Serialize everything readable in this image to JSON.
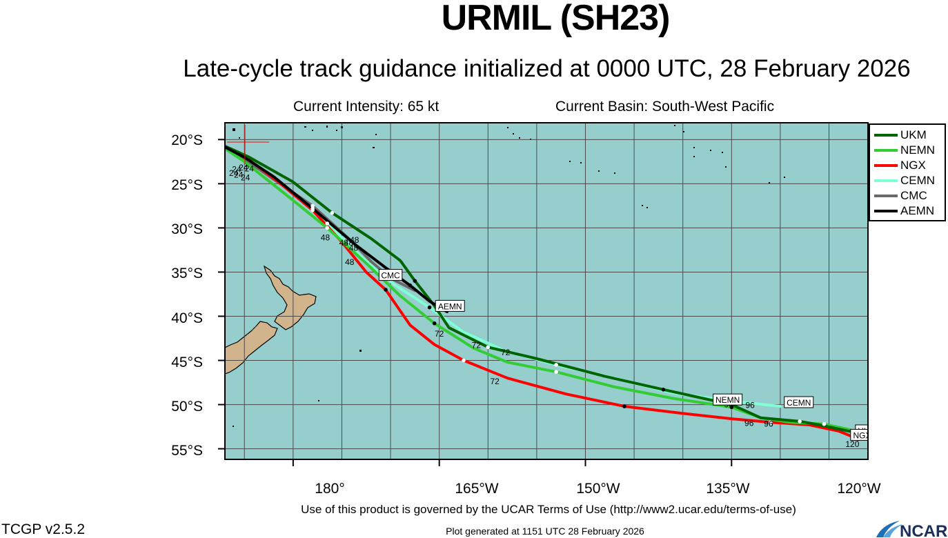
{
  "title": "URMIL (SH23)",
  "subtitle": "Late-cycle track guidance initialized at 0000 UTC, 28 February 2026",
  "current_intensity": "Current Intensity: 65 kt",
  "current_basin": "Current Basin: South-West Pacific",
  "lat_labels": [
    "20°S",
    "25°S",
    "30°S",
    "35°S",
    "40°S",
    "45°S",
    "50°S",
    "55°S"
  ],
  "lon_labels": [
    "180°",
    "165°W",
    "150°W",
    "135°W",
    "120°W"
  ],
  "terms": "Use of this product is governed by the UCAR Terms of Use (http://www2.ucar.edu/terms-of-use)",
  "version": "TCGP v2.5.2",
  "generated": "Plot generated at 1151 UTC   28 February 2026",
  "logo_text": "NCAR",
  "colors": {
    "ocean": "#96cdcd",
    "land": "#d2b48c",
    "UKM": "#006400",
    "NEMN": "#32cd32",
    "NGX": "#ff0000",
    "CEMN": "#7fffd4",
    "CMC": "#696969",
    "AEMN": "#000000"
  },
  "legend": [
    {
      "name": "UKM",
      "color": "#006400"
    },
    {
      "name": "NEMN",
      "color": "#32cd32"
    },
    {
      "name": "NGX",
      "color": "#ff0000"
    },
    {
      "name": "CEMN",
      "color": "#7fffd4"
    },
    {
      "name": "CMC",
      "color": "#696969"
    },
    {
      "name": "AEMN",
      "color": "#000000"
    }
  ],
  "chart_data": {
    "type": "map",
    "lon_range_east": [
      173.0,
      239.0
    ],
    "lat_range": [
      -56.2,
      -18.1
    ],
    "grid": true,
    "current_position": {
      "lon_east": 171.9,
      "lat": -20.2
    },
    "tracks": [
      {
        "name": "UKM",
        "points": [
          [
            171.9,
            -20.2
          ],
          [
            175.5,
            -22.0
          ],
          [
            180.0,
            -24.8
          ],
          [
            184.0,
            -28.3
          ],
          [
            188.0,
            -31.2
          ],
          [
            191.0,
            -33.7
          ],
          [
            192.5,
            -36.0
          ],
          [
            194.5,
            -38.8
          ],
          [
            196.0,
            -41.3
          ],
          [
            200.0,
            -43.5
          ],
          [
            205.0,
            -44.8
          ],
          [
            212.0,
            -46.8
          ],
          [
            218.0,
            -48.3
          ],
          [
            225.0,
            -50.0
          ],
          [
            228.0,
            -51.5
          ],
          [
            232.0,
            -51.9
          ],
          [
            234.0,
            -52.3
          ],
          [
            237.0,
            -53.0
          ],
          [
            239.0,
            -53.4
          ]
        ]
      },
      {
        "name": "NEMN",
        "points": [
          [
            171.9,
            -20.2
          ],
          [
            175.0,
            -22.5
          ],
          [
            179.0,
            -26.0
          ],
          [
            183.5,
            -30.0
          ],
          [
            187.5,
            -34.0
          ],
          [
            191.0,
            -37.7
          ],
          [
            194.5,
            -40.8
          ],
          [
            198.5,
            -43.6
          ],
          [
            202.0,
            -45.2
          ],
          [
            207.0,
            -46.3
          ],
          [
            213.0,
            -48.0
          ],
          [
            219.0,
            -49.3
          ],
          [
            225.0,
            -50.3
          ],
          [
            228.0,
            -51.5
          ],
          [
            231.0,
            -52.0
          ],
          [
            234.5,
            -52.2
          ],
          [
            237.0,
            -52.8
          ],
          [
            239.0,
            -53.4
          ]
        ]
      },
      {
        "name": "NGX",
        "points": [
          [
            171.9,
            -20.2
          ],
          [
            174.5,
            -21.5
          ],
          [
            178.5,
            -24.8
          ],
          [
            182.0,
            -28.0
          ],
          [
            185.0,
            -31.6
          ],
          [
            187.5,
            -35.0
          ],
          [
            189.5,
            -37.0
          ],
          [
            192.0,
            -41.0
          ],
          [
            194.5,
            -43.2
          ],
          [
            197.5,
            -45.0
          ],
          [
            202.0,
            -47.0
          ],
          [
            208.0,
            -48.8
          ],
          [
            214.0,
            -50.2
          ],
          [
            220.0,
            -51.0
          ],
          [
            225.0,
            -51.6
          ],
          [
            229.0,
            -52.0
          ],
          [
            233.0,
            -52.3
          ],
          [
            236.0,
            -53.0
          ],
          [
            238.0,
            -53.9
          ]
        ]
      },
      {
        "name": "CEMN",
        "points": [
          [
            171.9,
            -20.2
          ],
          [
            175.5,
            -22.5
          ],
          [
            179.5,
            -25.5
          ],
          [
            183.5,
            -29.5
          ],
          [
            187.0,
            -33.3
          ],
          [
            190.5,
            -36.5
          ],
          [
            194.0,
            -39.0
          ],
          [
            197.5,
            -41.8
          ],
          [
            201.5,
            -43.8
          ],
          [
            207.0,
            -45.5
          ],
          [
            213.0,
            -47.0
          ],
          [
            219.0,
            -48.7
          ],
          [
            225.0,
            -49.6
          ],
          [
            230.0,
            -50.2
          ]
        ]
      },
      {
        "name": "CMC",
        "points": [
          [
            171.9,
            -20.2
          ],
          [
            175.0,
            -22.2
          ],
          [
            178.0,
            -24.5
          ],
          [
            182.0,
            -27.5
          ],
          [
            186.0,
            -31.5
          ],
          [
            188.0,
            -33.8
          ],
          [
            190.0,
            -35.7
          ],
          [
            192.5,
            -37.1
          ]
        ]
      },
      {
        "name": "AEMN",
        "points": [
          [
            171.9,
            -20.2
          ],
          [
            175.0,
            -22.0
          ],
          [
            178.0,
            -24.2
          ],
          [
            182.0,
            -27.8
          ],
          [
            186.5,
            -32.0
          ],
          [
            189.5,
            -34.5
          ],
          [
            192.0,
            -36.5
          ],
          [
            194.0,
            -38.3
          ],
          [
            195.8,
            -39.5
          ]
        ]
      }
    ],
    "hour_labels": [
      {
        "text": "24",
        "lon": 173.9,
        "lat": -24.1
      },
      {
        "text": "24",
        "lon": 174.2,
        "lat": -23.7
      },
      {
        "text": "24",
        "lon": 174.4,
        "lat": -24.3
      },
      {
        "text": "24",
        "lon": 174.9,
        "lat": -23.5
      },
      {
        "text": "24",
        "lon": 175.5,
        "lat": -23.6
      },
      {
        "text": "24",
        "lon": 175.1,
        "lat": -24.6
      },
      {
        "text": "48",
        "lon": 183.3,
        "lat": -31.4
      },
      {
        "text": "48",
        "lon": 185.2,
        "lat": -32.0
      },
      {
        "text": "48",
        "lon": 185.7,
        "lat": -32.0
      },
      {
        "text": "48",
        "lon": 186.3,
        "lat": -31.7
      },
      {
        "text": "48",
        "lon": 186.2,
        "lat": -32.6
      },
      {
        "text": "48",
        "lon": 185.8,
        "lat": -34.2
      },
      {
        "text": "72",
        "lon": 195.0,
        "lat": -42.3
      },
      {
        "text": "72",
        "lon": 198.8,
        "lat": -43.6
      },
      {
        "text": "72",
        "lon": 201.8,
        "lat": -44.4
      },
      {
        "text": "72",
        "lon": 200.7,
        "lat": -47.7
      },
      {
        "text": "96",
        "lon": 224.7,
        "lat": -50.3
      },
      {
        "text": "96",
        "lon": 226.9,
        "lat": -50.4
      },
      {
        "text": "96",
        "lon": 226.8,
        "lat": -52.4
      },
      {
        "text": "96",
        "lon": 228.8,
        "lat": -52.5
      },
      {
        "text": "120",
        "lon": 237.4,
        "lat": -54.8
      },
      {
        "text": "120",
        "lon": 238.0,
        "lat": -54.0
      }
    ],
    "end_labels": [
      {
        "text": "CMC",
        "lon": 190.0,
        "lat": -35.4
      },
      {
        "text": "AEMN",
        "lon": 196.1,
        "lat": -38.9
      },
      {
        "text": "NEMN",
        "lon": 224.6,
        "lat": -49.5
      },
      {
        "text": "CEMN",
        "lon": 231.9,
        "lat": -49.8
      },
      {
        "text": "UKM",
        "lon": 238.9,
        "lat": -53.0
      },
      {
        "text": "NGX",
        "lon": 238.4,
        "lat": -53.5
      }
    ]
  }
}
